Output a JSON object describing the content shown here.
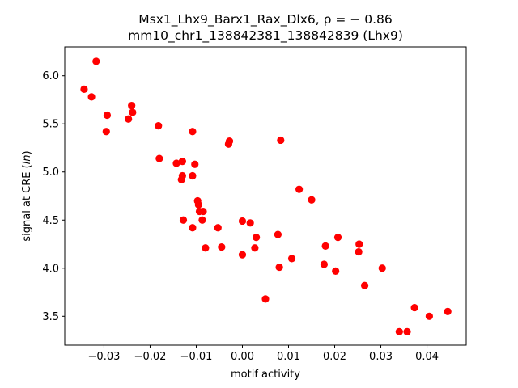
{
  "chart_data": {
    "type": "scatter",
    "title": "Msx1_Lhx9_Barx1_Rax_Dlx6, ρ = − 0.86",
    "subtitle": "mm10_chr1_138842381_138842839 (Lhx9)",
    "xlabel": "motif activity",
    "ylabel_prefix": "signal at CRE (",
    "ylabel_italic": "ln",
    "ylabel_suffix": ")",
    "xlim": [
      -0.0385,
      0.0485
    ],
    "ylim": [
      3.2,
      6.3
    ],
    "xticks": [
      -0.03,
      -0.02,
      -0.01,
      0.0,
      0.01,
      0.02,
      0.03,
      0.04
    ],
    "xtick_labels": [
      "−0.03",
      "−0.02",
      "−0.01",
      "0.00",
      "0.01",
      "0.02",
      "0.03",
      "0.04"
    ],
    "yticks": [
      3.5,
      4.0,
      4.5,
      5.0,
      5.5,
      6.0
    ],
    "ytick_labels": [
      "3.5",
      "4.0",
      "4.5",
      "5.0",
      "5.5",
      "6.0"
    ],
    "grid": false,
    "marker_color": "#ff0000",
    "points": [
      {
        "x": -0.0343,
        "y": 5.86
      },
      {
        "x": -0.0327,
        "y": 5.78
      },
      {
        "x": -0.0317,
        "y": 6.15
      },
      {
        "x": -0.0293,
        "y": 5.59
      },
      {
        "x": -0.0295,
        "y": 5.42
      },
      {
        "x": -0.0247,
        "y": 5.55
      },
      {
        "x": -0.024,
        "y": 5.69
      },
      {
        "x": -0.0238,
        "y": 5.62
      },
      {
        "x": -0.0182,
        "y": 5.48
      },
      {
        "x": -0.018,
        "y": 5.14
      },
      {
        "x": -0.0143,
        "y": 5.09
      },
      {
        "x": -0.013,
        "y": 5.11
      },
      {
        "x": -0.013,
        "y": 4.96
      },
      {
        "x": -0.0132,
        "y": 4.92
      },
      {
        "x": -0.0128,
        "y": 4.5
      },
      {
        "x": -0.0108,
        "y": 5.42
      },
      {
        "x": -0.0108,
        "y": 4.96
      },
      {
        "x": -0.0103,
        "y": 5.08
      },
      {
        "x": -0.0097,
        "y": 4.7
      },
      {
        "x": -0.0095,
        "y": 4.66
      },
      {
        "x": -0.0093,
        "y": 4.59
      },
      {
        "x": -0.0085,
        "y": 4.59
      },
      {
        "x": -0.0087,
        "y": 4.5
      },
      {
        "x": -0.0108,
        "y": 4.42
      },
      {
        "x": -0.008,
        "y": 4.21
      },
      {
        "x": -0.0053,
        "y": 4.42
      },
      {
        "x": -0.0045,
        "y": 4.22
      },
      {
        "x": -0.003,
        "y": 5.29
      },
      {
        "x": -0.0028,
        "y": 5.32
      },
      {
        "x": 0.0,
        "y": 4.49
      },
      {
        "x": 0.0017,
        "y": 4.47
      },
      {
        "x": 0.0027,
        "y": 4.21
      },
      {
        "x": 0.003,
        "y": 4.32
      },
      {
        "x": 0.0,
        "y": 4.14
      },
      {
        "x": 0.005,
        "y": 3.68
      },
      {
        "x": 0.0077,
        "y": 4.35
      },
      {
        "x": 0.008,
        "y": 4.01
      },
      {
        "x": 0.0083,
        "y": 5.33
      },
      {
        "x": 0.0107,
        "y": 4.1
      },
      {
        "x": 0.0123,
        "y": 4.82
      },
      {
        "x": 0.015,
        "y": 4.71
      },
      {
        "x": 0.0177,
        "y": 4.04
      },
      {
        "x": 0.018,
        "y": 4.23
      },
      {
        "x": 0.0202,
        "y": 3.97
      },
      {
        "x": 0.0207,
        "y": 4.32
      },
      {
        "x": 0.0253,
        "y": 4.25
      },
      {
        "x": 0.0252,
        "y": 4.17
      },
      {
        "x": 0.0265,
        "y": 3.82
      },
      {
        "x": 0.0303,
        "y": 4.0
      },
      {
        "x": 0.034,
        "y": 3.34
      },
      {
        "x": 0.0357,
        "y": 3.34
      },
      {
        "x": 0.0373,
        "y": 3.59
      },
      {
        "x": 0.0405,
        "y": 3.5
      },
      {
        "x": 0.0445,
        "y": 3.55
      }
    ]
  }
}
